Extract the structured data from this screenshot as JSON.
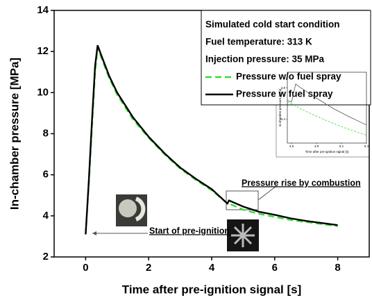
{
  "chart_data": [
    {
      "type": "line",
      "xlabel": "Time after pre-ignition signal [s]",
      "ylabel": "In-chamber pressure [MPa]",
      "xlim": [
        -1,
        9
      ],
      "xticks": [
        0,
        2,
        4,
        6,
        8
      ],
      "ylim": [
        2,
        14
      ],
      "yticks": [
        2,
        4,
        6,
        8,
        10,
        12,
        14
      ],
      "legend_title": [
        "Simulated cold start condition",
        "Fuel temperature: 313 K",
        "Injection pressure: 35 MPa"
      ],
      "legend": "upper right",
      "annotations": [
        "Start of pre-ignition",
        "Pressure rise by combustion"
      ],
      "x": [
        0,
        0.1,
        0.2,
        0.3,
        0.38,
        0.5,
        0.75,
        1,
        1.5,
        2,
        2.5,
        3,
        3.5,
        4,
        4.5,
        4.55,
        5,
        5.5,
        6,
        6.5,
        7,
        7.5,
        8
      ],
      "series": [
        {
          "name": "Pressure w/o fuel spray",
          "color": "#33dd33",
          "linestyle": "dashed",
          "values": [
            3.1,
            5.5,
            8.3,
            11.0,
            12.2,
            11.7,
            10.7,
            9.9,
            8.7,
            7.8,
            7.0,
            6.3,
            5.75,
            5.25,
            4.6,
            4.6,
            4.3,
            4.1,
            3.95,
            3.8,
            3.7,
            3.6,
            3.5
          ]
        },
        {
          "name": "Pressure w fuel spray",
          "color": "#000000",
          "linestyle": "solid",
          "values": [
            3.1,
            5.7,
            8.6,
            11.3,
            12.3,
            11.8,
            10.8,
            10.0,
            8.8,
            7.85,
            7.05,
            6.35,
            5.8,
            5.3,
            4.6,
            4.75,
            4.45,
            4.2,
            4.05,
            3.88,
            3.75,
            3.65,
            3.55
          ]
        }
      ]
    },
    {
      "type": "line",
      "xlabel": "Time after pre-ignition signal [s]",
      "ylabel": "In-chamber pressure [MPa]",
      "xlim": [
        4.45,
        5.4
      ],
      "xticks": [
        4.5,
        4.8,
        5.1,
        5.4
      ],
      "ylim": [
        4.1,
        5.0
      ],
      "yticks": [
        4.4,
        4.8
      ],
      "x": [
        4.45,
        4.5,
        4.55,
        4.6,
        4.8,
        5.0,
        5.2,
        5.4
      ],
      "series": [
        {
          "name": "Pressure w/o fuel spray",
          "color": "#33dd33",
          "linestyle": "dashed",
          "values": [
            4.62,
            4.6,
            4.57,
            4.54,
            4.44,
            4.35,
            4.27,
            4.2
          ]
        },
        {
          "name": "Pressure w fuel spray",
          "color": "#555555",
          "linestyle": "solid",
          "values": [
            4.64,
            4.62,
            4.85,
            4.81,
            4.67,
            4.54,
            4.43,
            4.33
          ]
        }
      ]
    }
  ]
}
